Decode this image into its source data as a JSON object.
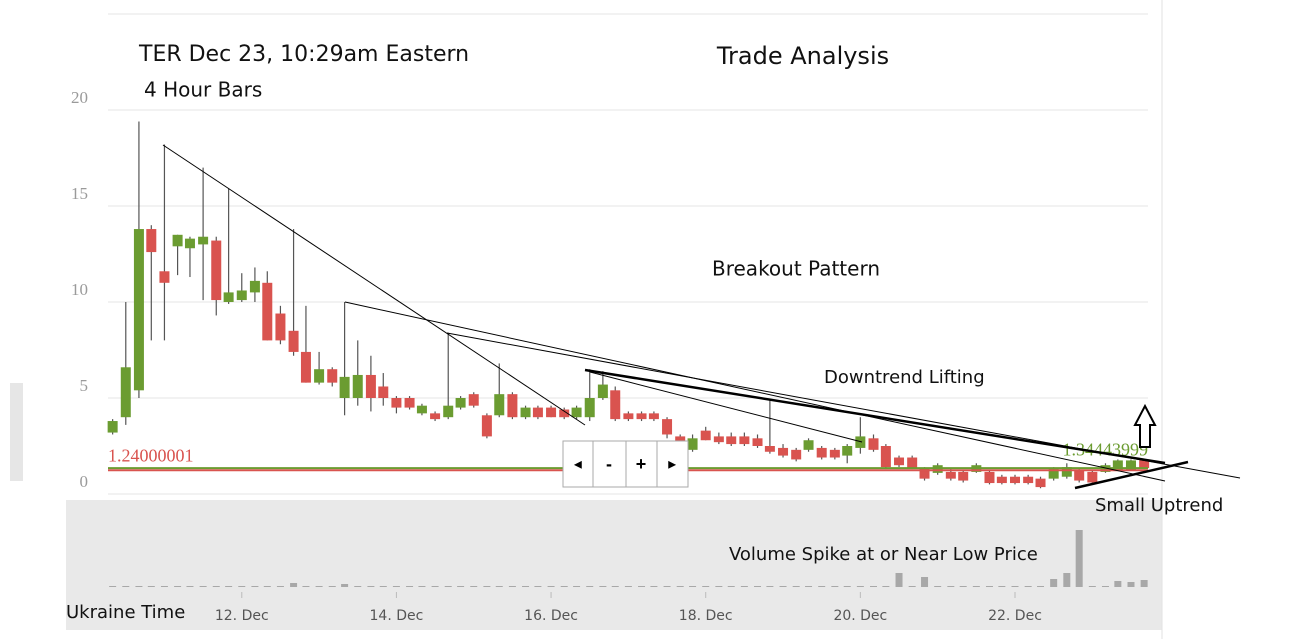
{
  "chart_data": {
    "type": "candlestick",
    "title": "TER Dec 23, 10:29am Eastern",
    "subtitle": "4 Hour Bars",
    "xlabel": "Ukraine Time",
    "annotations": [
      "Trade Analysis",
      "Breakout Pattern",
      "Downtrend Lifting",
      "Small Uptrend",
      "Volume Spike at or Near Low Price"
    ],
    "navigator": [
      "◂",
      "-",
      "+",
      "▸"
    ],
    "xlim": [
      10.27,
      23.72
    ],
    "xticks": [
      {
        "value": 12,
        "label": "12. Dec"
      },
      {
        "value": 14,
        "label": "14. Dec"
      },
      {
        "value": 16,
        "label": "16. Dec"
      },
      {
        "value": 18,
        "label": "18. Dec"
      },
      {
        "value": 20,
        "label": "20. Dec"
      },
      {
        "value": 22,
        "label": "22. Dec"
      }
    ],
    "ylim": [
      0,
      25
    ],
    "yticks": [
      0,
      5,
      10,
      15,
      20
    ],
    "grid": true,
    "up_color": "#6b9c31",
    "down_color": "#d9534f",
    "volume_color": "#a8a8a8",
    "volume_ylim": [
      0,
      70
    ],
    "x": [
      10.33,
      10.5,
      10.67,
      10.83,
      11,
      11.17,
      11.33,
      11.5,
      11.67,
      11.83,
      12,
      12.17,
      12.33,
      12.5,
      12.67,
      12.83,
      13,
      13.17,
      13.33,
      13.5,
      13.67,
      13.83,
      14,
      14.17,
      14.33,
      14.5,
      14.67,
      14.83,
      15,
      15.17,
      15.33,
      15.5,
      15.67,
      15.83,
      16,
      16.17,
      16.33,
      16.5,
      16.67,
      16.83,
      17,
      17.17,
      17.33,
      17.5,
      17.67,
      17.83,
      18,
      18.17,
      18.33,
      18.5,
      18.67,
      18.83,
      19,
      19.17,
      19.33,
      19.5,
      19.67,
      19.83,
      20,
      20.17,
      20.33,
      20.5,
      20.67,
      20.83,
      21,
      21.17,
      21.33,
      21.5,
      21.67,
      21.83,
      22,
      22.17,
      22.33,
      22.5,
      22.67,
      22.83,
      23,
      23.17,
      23.33,
      23.5,
      23.67
    ],
    "open": [
      3.2,
      4.0,
      5.4,
      13.8,
      11.6,
      12.9,
      12.8,
      13.0,
      13.2,
      10.0,
      10.1,
      10.5,
      11.0,
      9.4,
      8.5,
      7.4,
      5.8,
      6.5,
      5.0,
      5.0,
      6.2,
      5.6,
      5.0,
      5.0,
      4.2,
      4.2,
      4.0,
      4.5,
      5.2,
      4.1,
      4.1,
      5.2,
      4.0,
      4.5,
      4.5,
      4.4,
      4.0,
      4.0,
      5.0,
      5.4,
      4.2,
      4.2,
      4.2,
      3.9,
      3.0,
      2.3,
      3.3,
      3.0,
      3.0,
      3.0,
      2.9,
      2.5,
      2.4,
      2.3,
      2.3,
      2.4,
      2.3,
      2.0,
      2.4,
      2.9,
      2.5,
      1.9,
      1.9,
      1.35,
      1.1,
      1.15,
      1.15,
      1.15,
      1.15,
      0.9,
      0.9,
      0.9,
      0.8,
      0.8,
      0.9,
      1.25,
      1.15,
      1.15,
      1.25,
      1.25,
      1.75
    ],
    "high": [
      3.9,
      10.0,
      19.4,
      14.0,
      18.2,
      13.5,
      13.4,
      17.0,
      13.4,
      15.9,
      11.5,
      11.8,
      11.6,
      9.8,
      13.8,
      9.8,
      7.4,
      6.6,
      10.0,
      8.0,
      7.2,
      6.3,
      5.1,
      5.1,
      4.7,
      4.3,
      8.4,
      5.1,
      5.3,
      4.2,
      6.8,
      5.3,
      4.6,
      4.6,
      4.6,
      4.5,
      4.6,
      6.5,
      6.4,
      5.6,
      4.3,
      4.3,
      4.3,
      4.0,
      3.1,
      3.1,
      3.5,
      3.2,
      3.2,
      3.2,
      3.1,
      4.9,
      2.6,
      2.4,
      2.9,
      2.5,
      2.4,
      2.6,
      4.0,
      3.1,
      2.6,
      2.0,
      2.0,
      1.4,
      1.6,
      1.3,
      1.2,
      1.6,
      1.2,
      1.0,
      1.0,
      1.0,
      0.9,
      1.4,
      1.6,
      1.3,
      1.2,
      1.6,
      1.8,
      1.8,
      1.8
    ],
    "low": [
      3.1,
      3.6,
      5.0,
      8.0,
      8.0,
      11.4,
      11.3,
      10.1,
      9.3,
      9.9,
      10.0,
      10.0,
      8.0,
      7.8,
      7.2,
      5.8,
      5.7,
      5.6,
      4.1,
      4.6,
      4.3,
      4.6,
      4.2,
      4.4,
      4.1,
      3.8,
      3.9,
      4.4,
      4.5,
      2.9,
      4.0,
      3.9,
      3.9,
      3.9,
      4.0,
      3.9,
      3.9,
      3.8,
      4.9,
      3.8,
      3.8,
      3.8,
      3.8,
      2.9,
      2.6,
      2.2,
      2.8,
      2.6,
      2.5,
      2.5,
      2.4,
      2.1,
      1.9,
      1.7,
      2.2,
      1.8,
      1.8,
      1.6,
      2.1,
      2.2,
      1.3,
      1.4,
      1.3,
      0.7,
      1.0,
      0.7,
      0.6,
      1.1,
      0.5,
      0.5,
      0.5,
      0.5,
      0.3,
      0.7,
      0.8,
      0.6,
      0.5,
      1.1,
      1.2,
      1.2,
      1.3
    ],
    "close": [
      3.8,
      6.6,
      13.8,
      12.6,
      11.0,
      13.5,
      13.3,
      13.4,
      10.1,
      10.5,
      10.6,
      11.1,
      8.0,
      8.0,
      7.4,
      5.8,
      6.5,
      5.8,
      6.1,
      6.2,
      5.0,
      5.0,
      4.5,
      4.5,
      4.6,
      3.9,
      4.6,
      5.0,
      4.6,
      3.0,
      5.2,
      4.0,
      4.5,
      4.0,
      4.0,
      4.0,
      4.5,
      5.0,
      5.7,
      3.9,
      3.9,
      3.9,
      3.9,
      3.1,
      2.7,
      2.9,
      2.8,
      2.7,
      2.6,
      2.6,
      2.5,
      2.2,
      2.0,
      1.8,
      2.8,
      1.9,
      1.9,
      2.5,
      3.0,
      2.3,
      1.4,
      1.5,
      1.35,
      0.8,
      1.5,
      0.8,
      0.7,
      1.5,
      0.57,
      0.57,
      0.57,
      0.57,
      0.36,
      1.3,
      1.4,
      0.7,
      0.6,
      1.5,
      1.75,
      1.75,
      1.35
    ],
    "volume": [
      1,
      1,
      1,
      1,
      1,
      1,
      1,
      1,
      1,
      1,
      1,
      1,
      1,
      1,
      4,
      1,
      1,
      1,
      3,
      1,
      1,
      1,
      1,
      1,
      1,
      1,
      1,
      1,
      1,
      1,
      1,
      1,
      1,
      1,
      1,
      1,
      1,
      1,
      1,
      1,
      1,
      1,
      1,
      1,
      1,
      1,
      1,
      1,
      1,
      1,
      1,
      1,
      1,
      1,
      1,
      1,
      1,
      1,
      1,
      1,
      1,
      14,
      1,
      10,
      1,
      1,
      1,
      1,
      1,
      1,
      1,
      1,
      1,
      8,
      14,
      57,
      1,
      1,
      6,
      5,
      7
    ],
    "price_lines": [
      {
        "value": 1.24000001,
        "color": "#d9534f"
      },
      {
        "value": 1.34443999,
        "color": "#6b9c31"
      }
    ]
  }
}
